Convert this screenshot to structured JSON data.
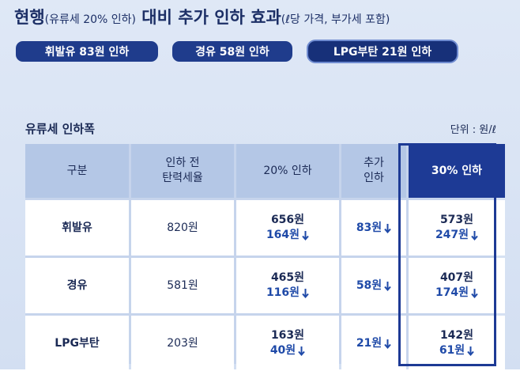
{
  "header": {
    "title_main": "현행",
    "title_paren": "(유류세 20% 인하)",
    "title_rest": "대비 추가 인하 효과",
    "title_note": "(ℓ당 가격, 부가세 포함)"
  },
  "badges": [
    "휘발유 83원 인하",
    "경유 58원 인하",
    "LPG부탄 21원 인하"
  ],
  "table": {
    "caption": "유류세 인하폭",
    "unit": "단위 : 원/ℓ",
    "columns": [
      [
        "구분"
      ],
      [
        "인하 전",
        "탄력세율"
      ],
      [
        "20% 인하"
      ],
      [
        "추가",
        "인하"
      ],
      [
        "30% 인하"
      ]
    ],
    "rows": [
      {
        "name": "휘발유",
        "before": "820원",
        "cut20": [
          "656원",
          "164원"
        ],
        "extra": "83원",
        "cut30": [
          "573원",
          "247원"
        ]
      },
      {
        "name": "경유",
        "before": "581원",
        "cut20": [
          "465원",
          "116원"
        ],
        "extra": "58원",
        "cut30": [
          "407원",
          "174원"
        ]
      },
      {
        "name": "LPG부탄",
        "before": "203원",
        "cut20": [
          "163원",
          "40원"
        ],
        "extra": "21원",
        "cut30": [
          "142원",
          "61원"
        ]
      }
    ]
  }
}
